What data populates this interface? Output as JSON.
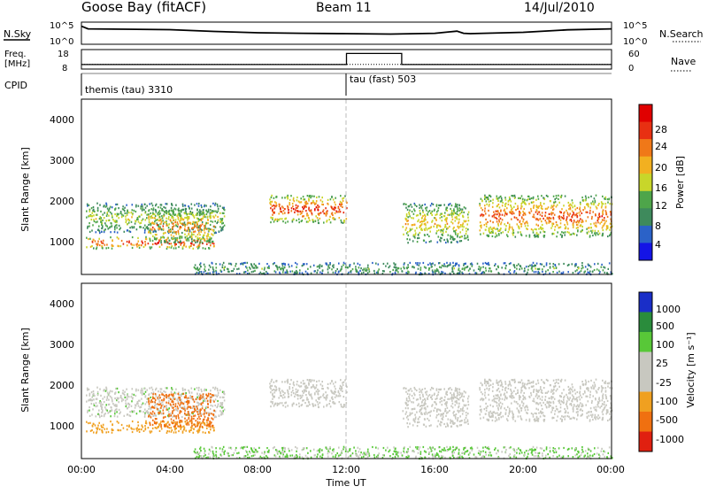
{
  "header": {
    "station": "Goose Bay (fitACF)",
    "beam": "Beam 11",
    "date": "14/Jul/2010"
  },
  "noise_panel": {
    "left_label": "N.Sky",
    "right_label": "N.Search",
    "left_ticks": [
      "10^5",
      "10^0"
    ],
    "right_ticks": [
      "10^5",
      "10^0"
    ]
  },
  "freq_panel": {
    "left_label_line1": "Freq.",
    "left_label_line2": "[MHz]",
    "right_label": "Nave",
    "left_ticks": [
      "18",
      "8"
    ],
    "right_ticks": [
      "60",
      "0"
    ]
  },
  "cpid_panel": {
    "label": "CPID",
    "segments": [
      {
        "name": "themis (tau) 3310",
        "start_hour": 0,
        "end_hour": 12
      },
      {
        "name": "tau (fast) 503",
        "start_hour": 12,
        "end_hour": 24
      }
    ]
  },
  "x_axis": {
    "label": "Time UT",
    "ticks": [
      "00:00",
      "04:00",
      "08:00",
      "12:00",
      "16:00",
      "20:00",
      "00:00"
    ]
  },
  "power_panel": {
    "ylabel": "Slant Range [km]",
    "yticks": [
      "4000",
      "3000",
      "2000",
      "1000"
    ],
    "colorbar_label": "Power [dB]",
    "colorbar_ticks": [
      "28",
      "24",
      "20",
      "16",
      "12",
      "8",
      "4"
    ]
  },
  "velocity_panel": {
    "ylabel": "Slant Range [km]",
    "yticks": [
      "4000",
      "3000",
      "2000",
      "1000"
    ],
    "colorbar_label": "Velocity [m s⁻¹]",
    "colorbar_ticks": [
      "1000",
      "500",
      "100",
      "25",
      "-25",
      "-100",
      "-500",
      "-1000"
    ]
  },
  "chart_data": {
    "type": "heatmap",
    "title": "Goose Bay (fitACF)   Beam 11   14/Jul/2010",
    "xlabel": "Time UT",
    "ylabel": "Slant Range [km]",
    "xlim_hours": [
      0,
      24
    ],
    "ylim_km": [
      180,
      4600
    ],
    "power_colorscale": [
      "#1414e6",
      "#2b62c8",
      "#3e8a5c",
      "#4ea54a",
      "#c8d62a",
      "#f2b020",
      "#f07818",
      "#e83012",
      "#e00000"
    ],
    "velocity_colorscale": [
      "#1a2ec8",
      "#2a8c3c",
      "#58c838",
      "#c8c8c0",
      "#c8c8c0",
      "#f0a020",
      "#f07010",
      "#e02010"
    ],
    "echo_regions": [
      {
        "t0": 0.2,
        "t1": 6.0,
        "r0": 850,
        "r1": 1150,
        "peak_power_db": 26,
        "velocity_ms": -60
      },
      {
        "t0": 0.2,
        "t1": 6.5,
        "r0": 1250,
        "r1": 2000,
        "peak_power_db": 14,
        "velocity_ms": 10
      },
      {
        "t0": 3.0,
        "t1": 6.0,
        "r0": 1000,
        "r1": 1850,
        "peak_power_db": 22,
        "velocity_ms": -300
      },
      {
        "t0": 8.5,
        "t1": 12.0,
        "r0": 1500,
        "r1": 2200,
        "peak_power_db": 26,
        "velocity_ms": 0
      },
      {
        "t0": 14.5,
        "t1": 17.5,
        "r0": 1000,
        "r1": 2000,
        "peak_power_db": 18,
        "velocity_ms": 0
      },
      {
        "t0": 18.0,
        "t1": 24.0,
        "r0": 1150,
        "r1": 2200,
        "peak_power_db": 24,
        "velocity_ms": 0
      },
      {
        "t0": 5.0,
        "t1": 24.0,
        "r0": 200,
        "r1": 500,
        "peak_power_db": 10,
        "velocity_ms": 30
      }
    ],
    "noise_sky": {
      "x_hours": [
        0,
        0.3,
        2,
        4,
        6,
        8,
        10,
        12,
        14,
        16,
        17,
        17.3,
        17.6,
        20,
        22,
        24
      ],
      "values": [
        12000,
        3000,
        2500,
        2000,
        800,
        400,
        300,
        250,
        200,
        300,
        900,
        300,
        250,
        500,
        1800,
        3000
      ]
    },
    "frequency_mhz": {
      "x_hours": [
        0,
        12,
        12,
        14.5,
        14.5,
        24
      ],
      "values": [
        10.4,
        10.4,
        10.4,
        10.4,
        10.4,
        10.4
      ]
    },
    "nave": {
      "x_hours": [
        0,
        12,
        12,
        14.5,
        14.5,
        24
      ],
      "values": [
        14,
        14,
        48,
        48,
        14,
        14
      ]
    }
  }
}
